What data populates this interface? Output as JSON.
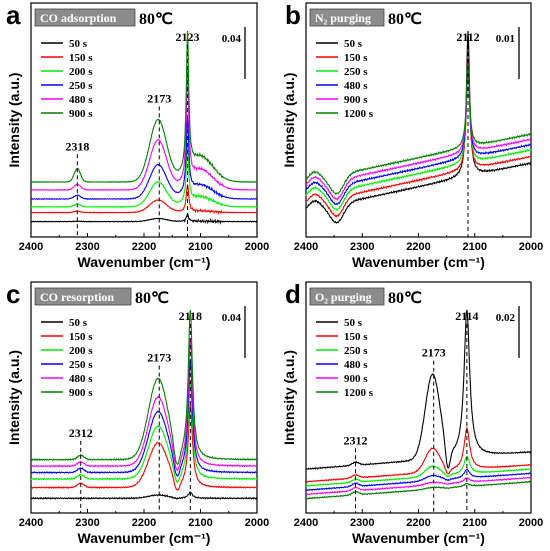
{
  "chart_data": [
    {
      "type": "line",
      "panel": "a",
      "title": "CO adsorption",
      "temperature": "80℃",
      "xlabel": "Wavenumber (cm⁻¹)",
      "ylabel": "Intensity (a.u.)",
      "xlim": [
        2400,
        2000
      ],
      "xticks": [
        "2400",
        "2300",
        "2200",
        "2100",
        "2000"
      ],
      "scale_bar": "0.04",
      "peak_labels": [
        "2318",
        "2173",
        "2123"
      ],
      "series": [
        {
          "name": "50 s",
          "color": "#000000"
        },
        {
          "name": "150 s",
          "color": "#ff0000"
        },
        {
          "name": "200 s",
          "color": "#00ee00"
        },
        {
          "name": "250 s",
          "color": "#0000ff"
        },
        {
          "name": "480 s",
          "color": "#ff00ff"
        },
        {
          "name": "900 s",
          "color": "#008000"
        }
      ]
    },
    {
      "type": "line",
      "panel": "b",
      "title": "N₂ purging",
      "temperature": "80℃",
      "xlabel": "Wavenumber (cm⁻¹)",
      "ylabel": "Intensity (a.u.)",
      "xlim": [
        2400,
        2000
      ],
      "xticks": [
        "2400",
        "2300",
        "2200",
        "2100",
        "2000"
      ],
      "scale_bar": "0.01",
      "peak_labels": [
        "2112"
      ],
      "series": [
        {
          "name": "50 s",
          "color": "#000000"
        },
        {
          "name": "150 s",
          "color": "#ff0000"
        },
        {
          "name": "250 s",
          "color": "#00ee00"
        },
        {
          "name": "480 s",
          "color": "#0000ff"
        },
        {
          "name": "900 s",
          "color": "#ff00ff"
        },
        {
          "name": "1200 s",
          "color": "#008000"
        }
      ]
    },
    {
      "type": "line",
      "panel": "c",
      "title": "CO resorption",
      "temperature": "80℃",
      "xlabel": "Wavenumber (cm⁻¹)",
      "ylabel": "Intensity (a.u.)",
      "xlim": [
        2400,
        2000
      ],
      "xticks": [
        "2400",
        "2300",
        "2200",
        "2100",
        "2000"
      ],
      "scale_bar": "0.04",
      "peak_labels": [
        "2312",
        "2173",
        "2118"
      ],
      "series": [
        {
          "name": "50 s",
          "color": "#000000"
        },
        {
          "name": "150 s",
          "color": "#ff0000"
        },
        {
          "name": "200 s",
          "color": "#00ee00"
        },
        {
          "name": "250 s",
          "color": "#0000ff"
        },
        {
          "name": "480 s",
          "color": "#ff00ff"
        },
        {
          "name": "900 s",
          "color": "#008000"
        }
      ]
    },
    {
      "type": "line",
      "panel": "d",
      "title": "O₂ purging",
      "temperature": "80℃",
      "xlabel": "Wavenumber (cm⁻¹)",
      "ylabel": "Intensity (a.u.)",
      "xlim": [
        2400,
        2000
      ],
      "xticks": [
        "2400",
        "2300",
        "2200",
        "2100",
        "2000"
      ],
      "scale_bar": "0.02",
      "peak_labels": [
        "2312",
        "2173",
        "2114"
      ],
      "series": [
        {
          "name": "50 s",
          "color": "#000000"
        },
        {
          "name": "150 s",
          "color": "#ff0000"
        },
        {
          "name": "250 s",
          "color": "#00ee00"
        },
        {
          "name": "480 s",
          "color": "#0000ff"
        },
        {
          "name": "900 s",
          "color": "#ff00ff"
        },
        {
          "name": "1200 s",
          "color": "#008000"
        }
      ]
    }
  ]
}
